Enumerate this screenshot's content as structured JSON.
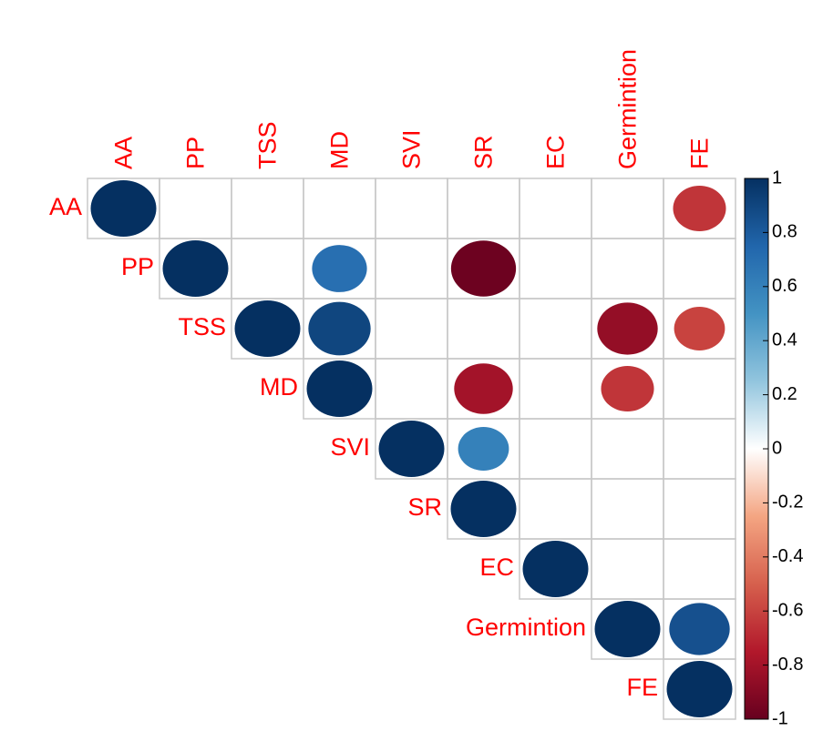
{
  "chart_data": {
    "type": "corrplot",
    "variables": [
      "AA",
      "PP",
      "TSS",
      "MD",
      "SVI",
      "SR",
      "EC",
      "Germintion",
      "FE"
    ],
    "matrix": [
      [
        1,
        null,
        null,
        null,
        null,
        null,
        null,
        null,
        -0.65
      ],
      [
        null,
        1,
        null,
        0.7,
        null,
        -0.98,
        null,
        null,
        null
      ],
      [
        null,
        null,
        1,
        0.9,
        null,
        null,
        null,
        -0.85,
        -0.6
      ],
      [
        null,
        null,
        null,
        1,
        null,
        -0.8,
        null,
        -0.65,
        null
      ],
      [
        null,
        null,
        null,
        null,
        1,
        0.6,
        null,
        null,
        null
      ],
      [
        null,
        null,
        null,
        null,
        null,
        1,
        null,
        null,
        null
      ],
      [
        null,
        null,
        null,
        null,
        null,
        null,
        1,
        null,
        null
      ],
      [
        null,
        null,
        null,
        null,
        null,
        null,
        null,
        1,
        0.85
      ],
      [
        null,
        null,
        null,
        null,
        null,
        null,
        null,
        null,
        1
      ]
    ],
    "triangle": "upper",
    "clim": [
      -1,
      1
    ],
    "cticks": [
      1,
      0.8,
      0.6,
      0.4,
      0.2,
      0,
      -0.2,
      -0.4,
      -0.6,
      -0.8,
      -1
    ],
    "colorscale": [
      {
        "value": -1,
        "color": "#67001f"
      },
      {
        "value": -0.75,
        "color": "#b2182b"
      },
      {
        "value": -0.5,
        "color": "#d6604d"
      },
      {
        "value": -0.25,
        "color": "#f4a582"
      },
      {
        "value": 0,
        "color": "#ffffff"
      },
      {
        "value": 0.25,
        "color": "#92c5de"
      },
      {
        "value": 0.5,
        "color": "#4393c3"
      },
      {
        "value": 0.75,
        "color": "#2166ac"
      },
      {
        "value": 1,
        "color": "#053061"
      }
    ],
    "label_color": "#ff0000",
    "grid_color": "#c8c8c8"
  }
}
